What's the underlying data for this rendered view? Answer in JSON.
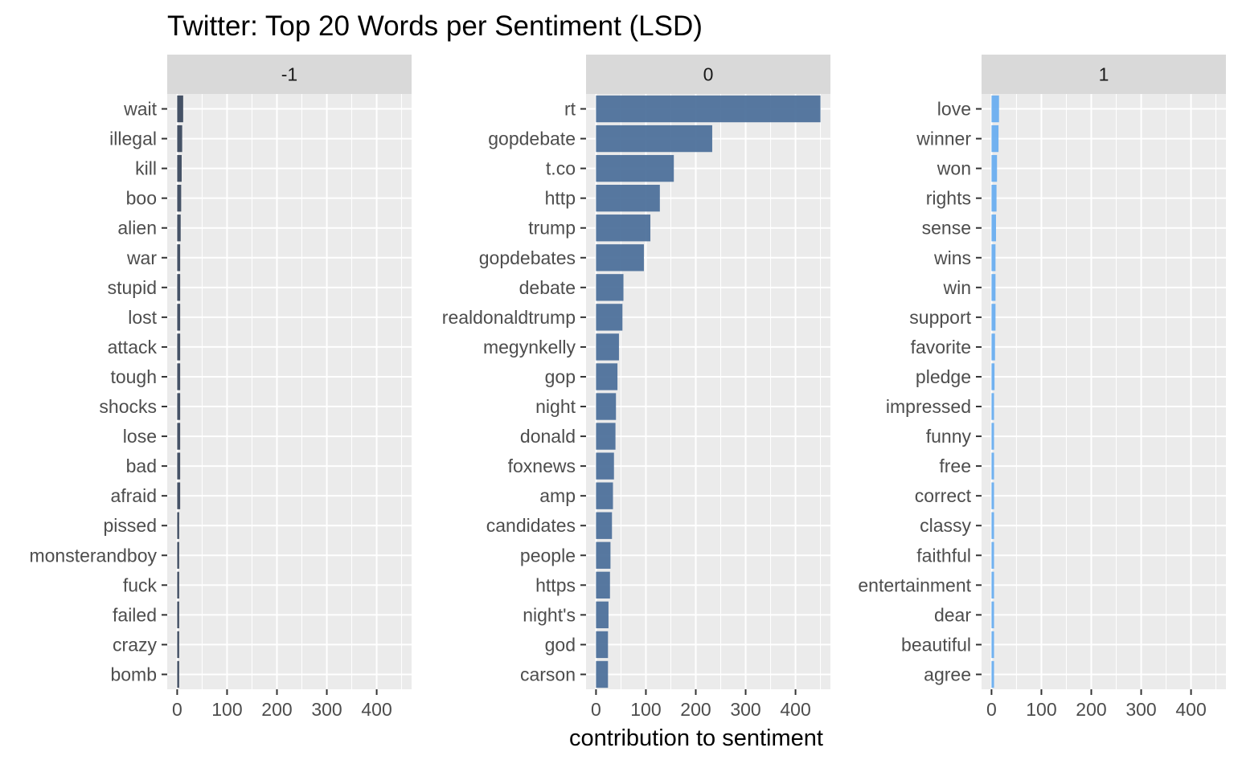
{
  "chart_data": {
    "type": "bar",
    "orientation": "horizontal",
    "title": "Twitter: Top 20 Words per Sentiment (LSD)",
    "xlabel": "contribution to sentiment",
    "ylabel": "",
    "xlim": [
      -20,
      470
    ],
    "x_ticks": [
      0,
      100,
      200,
      300,
      400
    ],
    "grid": true,
    "legend": "none",
    "panels": [
      {
        "facet": "-1",
        "color": "#3c4a5f",
        "categories": [
          "wait",
          "illegal",
          "kill",
          "boo",
          "alien",
          "war",
          "stupid",
          "lost",
          "attack",
          "tough",
          "shocks",
          "lose",
          "bad",
          "afraid",
          "pissed",
          "monsterandboy",
          "fuck",
          "failed",
          "crazy",
          "bomb"
        ],
        "values": [
          12,
          10,
          9,
          8,
          7,
          6,
          6,
          6,
          6,
          6,
          6,
          6,
          6,
          6,
          4,
          4,
          4,
          4,
          4,
          4
        ]
      },
      {
        "facet": "0",
        "color": "#4e719b",
        "categories": [
          "rt",
          "gopdebate",
          "t.co",
          "http",
          "trump",
          "gopdebates",
          "debate",
          "realdonaldtrump",
          "megynkelly",
          "gop",
          "night",
          "donald",
          "foxnews",
          "amp",
          "candidates",
          "people",
          "https",
          "night's",
          "god",
          "carson"
        ],
        "values": [
          450,
          233,
          156,
          128,
          109,
          96,
          55,
          53,
          46,
          43,
          40,
          39,
          36,
          34,
          32,
          29,
          28,
          25,
          24,
          24
        ]
      },
      {
        "facet": "1",
        "color": "#6aaef0",
        "categories": [
          "love",
          "winner",
          "won",
          "rights",
          "sense",
          "wins",
          "win",
          "support",
          "favorite",
          "pledge",
          "impressed",
          "funny",
          "free",
          "correct",
          "classy",
          "faithful",
          "entertainment",
          "dear",
          "beautiful",
          "agree"
        ],
        "values": [
          15,
          14,
          11,
          10,
          9,
          8,
          8,
          8,
          7,
          6,
          5,
          5,
          5,
          5,
          5,
          5,
          5,
          5,
          5,
          5
        ]
      }
    ]
  }
}
